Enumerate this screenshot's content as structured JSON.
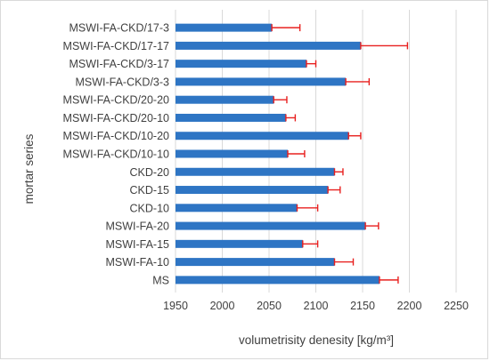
{
  "chart_data": {
    "type": "bar",
    "orientation": "horizontal",
    "categories": [
      "MSWI-FA-CKD/17-3",
      "MSWI-FA-CKD/17-17",
      "MSWI-FA-CKD/3-17",
      "MSWI-FA-CKD/3-3",
      "MSWI-FA-CKD/20-20",
      "MSWI-FA-CKD/20-10",
      "MSWI-FA-CKD/10-20",
      "MSWI-FA-CKD/10-10",
      "CKD-20",
      "CKD-15",
      "CKD-10",
      "MSWI-FA-20",
      "MSWI-FA-15",
      "MSWI-FA-10",
      "MS"
    ],
    "values": [
      2053,
      2148,
      2090,
      2132,
      2055,
      2068,
      2135,
      2070,
      2120,
      2113,
      2080,
      2153,
      2086,
      2120,
      2168
    ],
    "errors": [
      30,
      50,
      10,
      25,
      14,
      10,
      13,
      18,
      9,
      13,
      22,
      14,
      16,
      20,
      20
    ],
    "xlim": [
      1950,
      2250
    ],
    "xticks": [
      "1950",
      "2000",
      "2050",
      "2100",
      "2150",
      "2200",
      "2250"
    ],
    "xlabel": "volumetrisity denesity [kg/m³]",
    "ylabel": "mortar series",
    "grid": "vertical",
    "colors": {
      "bar": "#2E75C4",
      "error_bar": "#E8201F",
      "grid": "#d9d9d9"
    }
  }
}
